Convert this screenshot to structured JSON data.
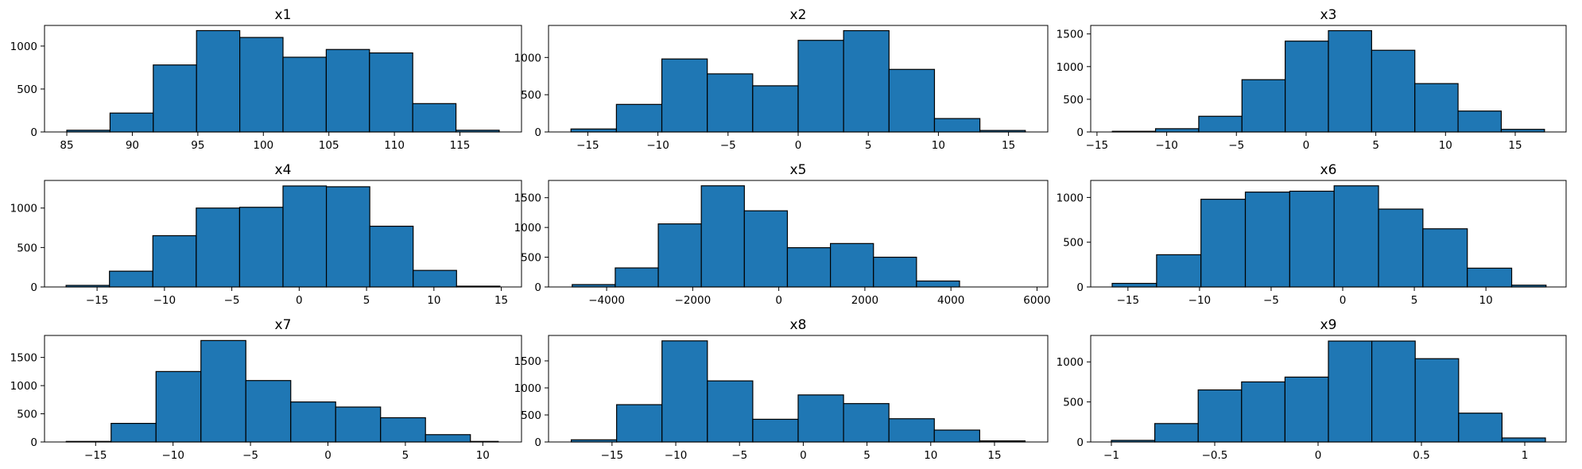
{
  "colors": {
    "bar_fill": "#1f77b4",
    "bar_edge": "#000000"
  },
  "chart_data": [
    {
      "type": "bar",
      "title": "x1",
      "xlabel": "",
      "ylabel": "",
      "bin_edges": [
        85.0,
        88.3,
        91.6,
        94.9,
        98.2,
        101.5,
        104.8,
        108.1,
        111.4,
        114.7,
        118.0
      ],
      "counts": [
        20,
        220,
        780,
        1180,
        1100,
        870,
        960,
        920,
        330,
        20
      ],
      "xlim": [
        83.3,
        119.7
      ],
      "ylim": [
        0,
        1240
      ],
      "xticks": [
        85,
        90,
        95,
        100,
        105,
        110,
        115
      ],
      "yticks": [
        0,
        500,
        1000
      ]
    },
    {
      "type": "bar",
      "title": "x2",
      "xlabel": "",
      "ylabel": "",
      "bin_edges": [
        -16.2,
        -12.96,
        -9.72,
        -6.48,
        -3.24,
        0.0,
        3.24,
        6.48,
        9.72,
        12.96,
        16.2
      ],
      "counts": [
        40,
        370,
        980,
        780,
        620,
        1230,
        1360,
        840,
        180,
        20
      ],
      "xlim": [
        -17.8,
        17.8
      ],
      "ylim": [
        0,
        1430
      ],
      "xticks": [
        -15,
        -10,
        -5,
        0,
        5,
        10,
        15
      ],
      "yticks": [
        0,
        500,
        1000
      ]
    },
    {
      "type": "bar",
      "title": "x3",
      "xlabel": "",
      "ylabel": "",
      "bin_edges": [
        -13.9,
        -10.8,
        -7.7,
        -4.6,
        -1.5,
        1.6,
        4.7,
        7.8,
        10.9,
        14.0,
        17.1
      ],
      "counts": [
        10,
        50,
        240,
        800,
        1390,
        1550,
        1250,
        740,
        320,
        40
      ],
      "xlim": [
        -15.45,
        18.65
      ],
      "ylim": [
        0,
        1630
      ],
      "xticks": [
        -15,
        -10,
        -5,
        0,
        5,
        10,
        15
      ],
      "yticks": [
        0,
        500,
        1000,
        1500
      ]
    },
    {
      "type": "bar",
      "title": "x4",
      "xlabel": "",
      "ylabel": "",
      "bin_edges": [
        -17.3,
        -14.08,
        -10.86,
        -7.64,
        -4.42,
        -1.2,
        2.02,
        5.24,
        8.46,
        11.68,
        14.9
      ],
      "counts": [
        20,
        200,
        650,
        1000,
        1010,
        1280,
        1270,
        770,
        210,
        10
      ],
      "xlim": [
        -18.9,
        16.5
      ],
      "ylim": [
        0,
        1350
      ],
      "xticks": [
        -15,
        -10,
        -5,
        0,
        5,
        10,
        15
      ],
      "yticks": [
        0,
        500,
        1000
      ]
    },
    {
      "type": "bar",
      "title": "x5",
      "xlabel": "",
      "ylabel": "",
      "bin_edges": [
        -4800,
        -3800,
        -2800,
        -1800,
        -800,
        200,
        1200,
        2200,
        3200,
        4200,
        5200
      ],
      "counts": [
        40,
        320,
        1060,
        1700,
        1280,
        660,
        730,
        500,
        100,
        0
      ],
      "xlim": [
        -5350,
        6250
      ],
      "ylim": [
        0,
        1790
      ],
      "xticks": [
        -4000,
        -2000,
        0,
        2000,
        4000,
        6000
      ],
      "yticks": [
        0,
        500,
        1000,
        1500
      ]
    },
    {
      "type": "bar",
      "title": "x6",
      "xlabel": "",
      "ylabel": "",
      "bin_edges": [
        -16.1,
        -13.0,
        -9.9,
        -6.8,
        -3.7,
        -0.6,
        2.5,
        5.6,
        8.7,
        11.8,
        14.2
      ],
      "counts": [
        40,
        360,
        980,
        1060,
        1070,
        1130,
        870,
        650,
        210,
        20
      ],
      "xlim": [
        -17.6,
        15.6
      ],
      "ylim": [
        0,
        1190
      ],
      "xticks": [
        -15,
        -10,
        -5,
        0,
        5,
        10
      ],
      "yticks": [
        0,
        500,
        1000
      ]
    },
    {
      "type": "bar",
      "title": "x7",
      "xlabel": "",
      "ylabel": "",
      "bin_edges": [
        -16.9,
        -14.0,
        -11.1,
        -8.2,
        -5.3,
        -2.4,
        0.5,
        3.4,
        6.3,
        9.2,
        11.0
      ],
      "counts": [
        10,
        330,
        1250,
        1800,
        1090,
        710,
        620,
        430,
        130,
        10
      ],
      "xlim": [
        -18.3,
        12.5
      ],
      "ylim": [
        0,
        1890
      ],
      "xticks": [
        -15,
        -10,
        -5,
        0,
        5,
        10
      ],
      "yticks": [
        0,
        500,
        1000,
        1500
      ]
    },
    {
      "type": "bar",
      "title": "x8",
      "xlabel": "",
      "ylabel": "",
      "bin_edges": [
        -18.2,
        -14.64,
        -11.08,
        -7.52,
        -3.96,
        -0.4,
        3.16,
        6.72,
        10.28,
        13.84,
        17.4
      ],
      "counts": [
        40,
        690,
        1870,
        1130,
        420,
        870,
        710,
        430,
        220,
        20
      ],
      "xlim": [
        -19.98,
        19.18
      ],
      "ylim": [
        0,
        1970
      ],
      "xticks": [
        -15,
        -10,
        -5,
        0,
        5,
        10,
        15
      ],
      "yticks": [
        0,
        500,
        1000,
        1500
      ]
    },
    {
      "type": "bar",
      "title": "x9",
      "xlabel": "",
      "ylabel": "",
      "bin_edges": [
        -1.0,
        -0.79,
        -0.58,
        -0.37,
        -0.16,
        0.05,
        0.26,
        0.47,
        0.68,
        0.89,
        1.1
      ],
      "counts": [
        20,
        230,
        650,
        750,
        810,
        1260,
        1260,
        1040,
        360,
        50
      ],
      "xlim": [
        -1.1,
        1.2
      ],
      "ylim": [
        0,
        1330
      ],
      "xticks": [
        -1.0,
        -0.5,
        0.0,
        0.5,
        1.0
      ],
      "yticks": [
        0,
        500,
        1000
      ]
    }
  ]
}
